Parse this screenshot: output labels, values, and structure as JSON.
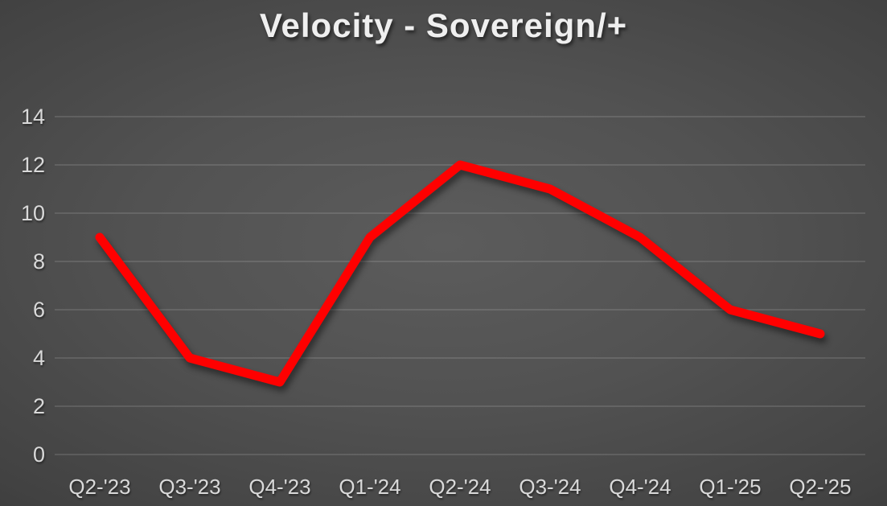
{
  "title": "Velocity - Sovereign/+",
  "chart_data": {
    "type": "line",
    "title": "Velocity - Sovereign/+",
    "categories": [
      "Q2-'23",
      "Q3-'23",
      "Q4-'23",
      "Q1-'24",
      "Q2-'24",
      "Q3-'24",
      "Q4-'24",
      "Q1-'25",
      "Q2-'25"
    ],
    "series": [
      {
        "name": "Velocity",
        "values": [
          9,
          4,
          3,
          9,
          12,
          11,
          9,
          6,
          5
        ]
      }
    ],
    "xlabel": "",
    "ylabel": "",
    "ylim": [
      0,
      14
    ],
    "ytick_step": 2,
    "ytick_labels": [
      "0",
      "2",
      "4",
      "6",
      "8",
      "10",
      "12",
      "14"
    ],
    "grid": true,
    "legend_position": "none",
    "colors": {
      "series": "#ff0000",
      "tick_label": "#d9d9d9",
      "gridline": "rgba(255,255,255,0.16)",
      "title_text": "#efefef",
      "background_center": "#5c5c5c",
      "background_edge": "#232323"
    },
    "line_width": 11
  }
}
